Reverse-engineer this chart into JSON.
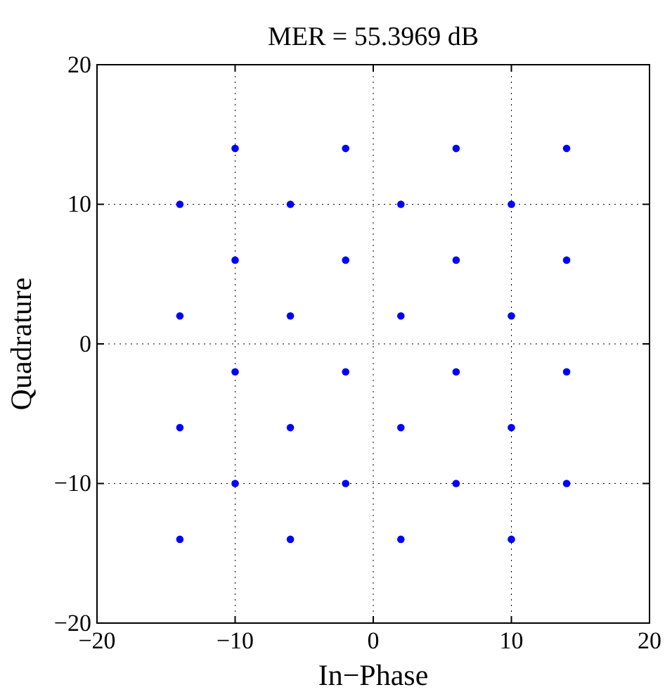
{
  "chart_data": {
    "type": "scatter",
    "title": "MER = 55.3969 dB",
    "xlabel": "In−Phase",
    "ylabel": "Quadrature",
    "x": [
      -10,
      -2,
      6,
      14,
      -14,
      -6,
      2,
      10,
      -10,
      -2,
      6,
      14,
      -14,
      -6,
      2,
      10,
      -10,
      -2,
      6,
      14,
      -14,
      -6,
      2,
      10,
      -10,
      -2,
      6,
      14,
      -14,
      -6,
      2,
      10
    ],
    "values": [
      14,
      14,
      14,
      14,
      10,
      10,
      10,
      10,
      6,
      6,
      6,
      6,
      2,
      2,
      2,
      2,
      -2,
      -2,
      -2,
      -2,
      -6,
      -6,
      -6,
      -6,
      -10,
      -10,
      -10,
      -10,
      -14,
      -14,
      -14,
      -14
    ],
    "color": "#0000ff",
    "marker": "circle",
    "xlim": [
      -20,
      20
    ],
    "ylim": [
      -20,
      20
    ],
    "xticks": [
      {
        "value": -20,
        "label": "−20"
      },
      {
        "value": -10,
        "label": "−10"
      },
      0,
      10,
      20
    ],
    "yticks": [
      {
        "value": -20,
        "label": "−20"
      },
      {
        "value": -10,
        "label": "−10"
      },
      0,
      10,
      20
    ],
    "grid": true
  }
}
